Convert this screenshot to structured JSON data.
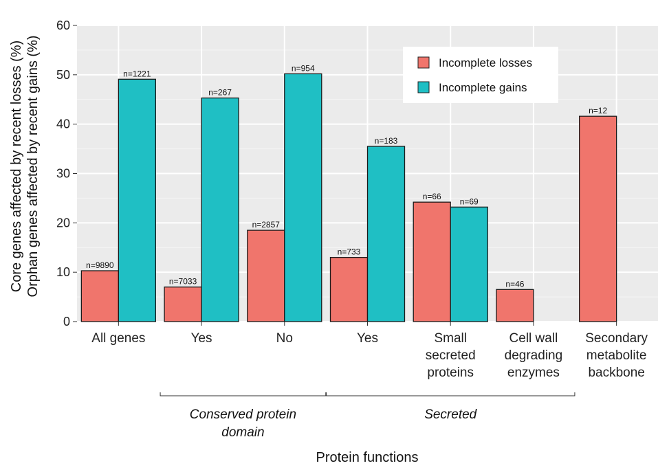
{
  "chart_data": {
    "type": "bar",
    "ylabel_line1": "Core genes affected by recent losses (%)",
    "ylabel_line2": "Orphan genes affected by recent gains (%)",
    "xlabel": "Protein functions",
    "ylim": [
      0,
      60
    ],
    "yticks": [
      0,
      10,
      20,
      30,
      40,
      50,
      60
    ],
    "grid": true,
    "legend_position": "top-right",
    "categories": [
      [
        "All genes"
      ],
      [
        "Yes"
      ],
      [
        "No"
      ],
      [
        "Yes"
      ],
      [
        "Small",
        "secreted",
        "proteins"
      ],
      [
        "Cell wall",
        "degrading",
        "enzymes"
      ],
      [
        "Secondary",
        "metabolite",
        "backbone"
      ]
    ],
    "groups": [
      {
        "label": [
          "Conserved protein",
          "domain"
        ],
        "span": [
          1,
          2
        ]
      },
      {
        "label": [
          "Secreted"
        ],
        "span": [
          3,
          5
        ]
      }
    ],
    "series": [
      {
        "name": "Incomplete losses",
        "color": "#F0756C",
        "values": [
          10.3,
          7.0,
          18.5,
          13.0,
          24.2,
          6.5,
          41.6
        ],
        "n_labels": [
          "n=9890",
          "n=7033",
          "n=2857",
          "n=733",
          "n=66",
          "n=46",
          "n=12"
        ]
      },
      {
        "name": "Incomplete gains",
        "color": "#1FBFC4",
        "values": [
          49.1,
          45.3,
          50.2,
          35.5,
          23.2,
          null,
          null
        ],
        "n_labels": [
          "n=1221",
          "n=267",
          "n=954",
          "n=183",
          "n=69",
          null,
          null
        ]
      }
    ]
  }
}
